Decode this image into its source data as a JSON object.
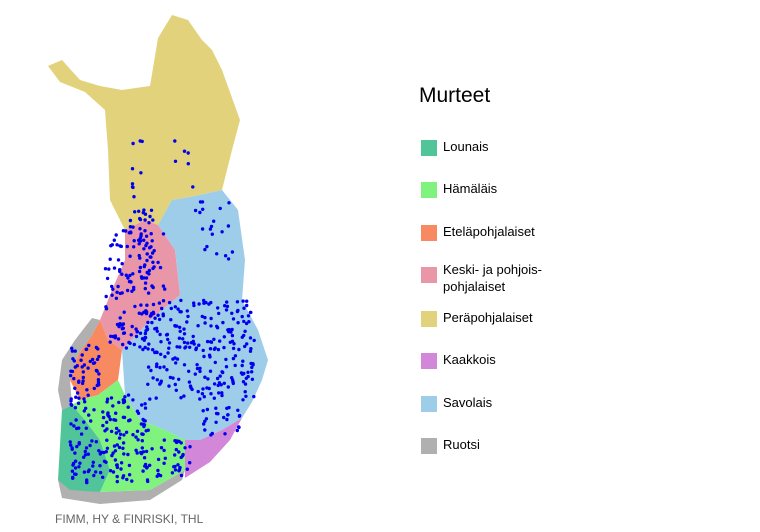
{
  "legend": {
    "title": "Murteet",
    "items": [
      {
        "label": "Lounais",
        "color": "#52c49a"
      },
      {
        "label": "Hämäläis",
        "color": "#80f27e"
      },
      {
        "label": "Eteläpohjalaiset",
        "color": "#f78a60"
      },
      {
        "label": "Keski- ja pohjois-\npohjalaiset",
        "color": "#e996a8"
      },
      {
        "label": "Peräpohjalaiset",
        "color": "#e2d27c"
      },
      {
        "label": "Kaakkois",
        "color": "#d287d8"
      },
      {
        "label": "Savolais",
        "color": "#9ecde9"
      },
      {
        "label": "Ruotsi",
        "color": "#b0b0b0"
      }
    ]
  },
  "credit": "FIMM, HY & FINRISKI, THL",
  "dot_color": "#0000ee"
}
